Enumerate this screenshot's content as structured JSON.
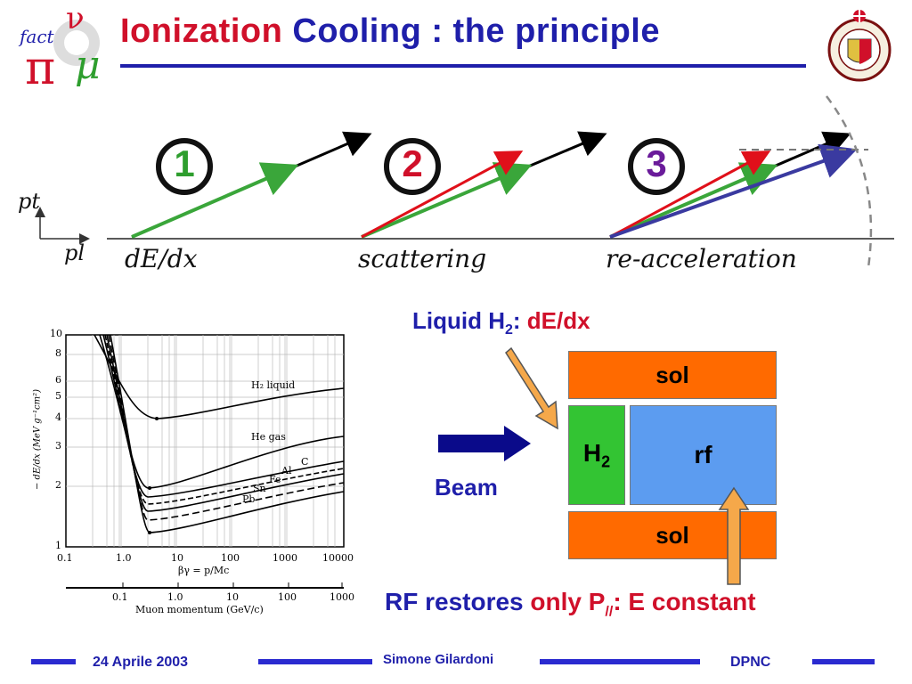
{
  "header": {
    "title_part1": "Ionization",
    "title_part2": "Cooling : the principle",
    "left_logo_text": "fact",
    "left_logo_symbols": "ν π μ",
    "right_logo_text": "SCHOLA GENEVENSIS 1559"
  },
  "diagram": {
    "axis_vertical": "pt",
    "axis_horizontal": "pl",
    "steps": [
      {
        "number": "1",
        "label": "dE/dx",
        "number_color": "#2e9e2e"
      },
      {
        "number": "2",
        "label": "scattering",
        "number_color": "#d0102a"
      },
      {
        "number": "3",
        "label": "re-acceleration",
        "number_color": "#6a1b9a"
      }
    ]
  },
  "plot": {
    "ylabel": "− dE/dx (MeV g⁻¹cm²)",
    "xlabel_top": "βγ = p/Mc",
    "xlabel_bottom": "Muon momentum (GeV/c)",
    "yticks": [
      "10",
      "8",
      "6",
      "5",
      "4",
      "3",
      "2",
      "1"
    ],
    "xticks_top": [
      "0.1",
      "1.0",
      "10",
      "100",
      "1000",
      "10000"
    ],
    "xticks_bottom": [
      "0.1",
      "1.0",
      "10",
      "100",
      "1000"
    ],
    "curve_labels": [
      "H₂ liquid",
      "He gas",
      "C",
      "Al",
      "Fe",
      "Sn",
      "Pb"
    ]
  },
  "cooling_cell": {
    "liquid_label": "Liquid H",
    "liquid_sub": "2",
    "liquid_colon": ":",
    "liquid_effect": "dE/dx",
    "beam_label": "Beam",
    "sol_top": "sol",
    "sol_bottom": "sol",
    "absorber": "H",
    "absorber_sub": "2",
    "rf": "rf",
    "rf_note_part1": "RF restores",
    "rf_note_part2": "only P",
    "rf_note_sub": "//",
    "rf_note_part3": ": E constant",
    "colors": {
      "sol": "#ff6a00",
      "h2": "#33c433",
      "rf": "#5c9cf0",
      "arrow": "#f5a84a",
      "beam": "#0a0a8a"
    }
  },
  "footer": {
    "date": "24 Aprile 2003",
    "author": "Simone Gilardoni",
    "institute": "DPNC"
  }
}
